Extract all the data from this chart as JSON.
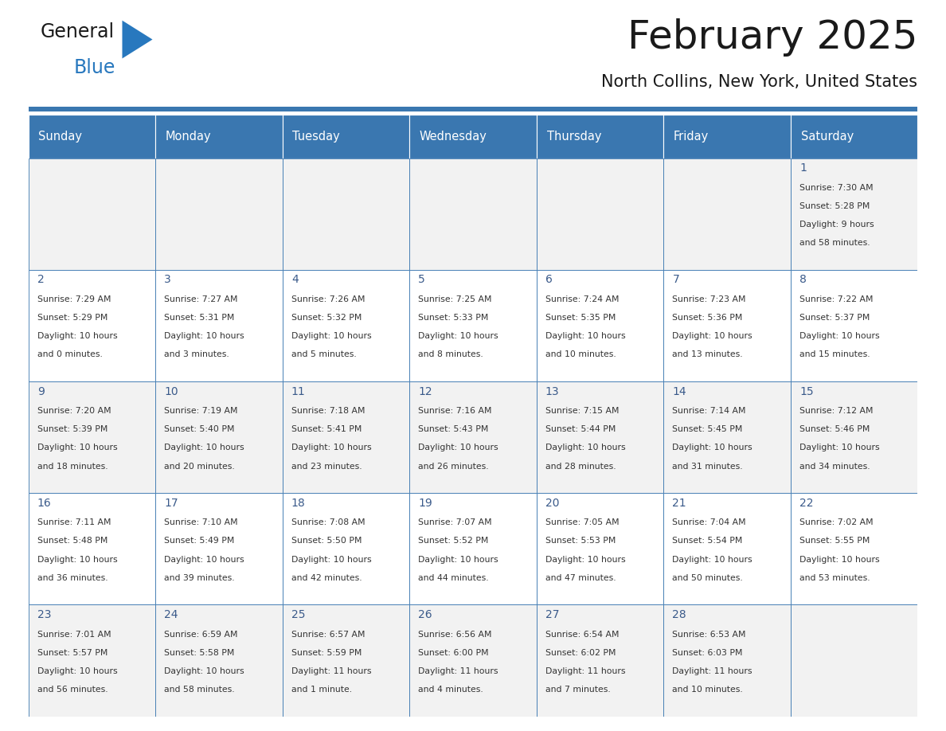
{
  "title": "February 2025",
  "subtitle": "North Collins, New York, United States",
  "days_of_week": [
    "Sunday",
    "Monday",
    "Tuesday",
    "Wednesday",
    "Thursday",
    "Friday",
    "Saturday"
  ],
  "header_bg": "#3a77b0",
  "header_text": "#ffffff",
  "cell_bg_odd": "#f2f2f2",
  "cell_bg_even": "#ffffff",
  "cell_border": "#3a77b0",
  "title_color": "#1a1a1a",
  "subtitle_color": "#1a1a1a",
  "day_num_color": "#3a5a8a",
  "cell_text_color": "#333333",
  "logo_general_color": "#1a1a1a",
  "logo_blue_color": "#2878be",
  "weeks": [
    [
      null,
      null,
      null,
      null,
      null,
      null,
      {
        "day": 1,
        "sunrise": "7:30 AM",
        "sunset": "5:28 PM",
        "daylight_line1": "Daylight: 9 hours",
        "daylight_line2": "and 58 minutes."
      }
    ],
    [
      {
        "day": 2,
        "sunrise": "7:29 AM",
        "sunset": "5:29 PM",
        "daylight_line1": "Daylight: 10 hours",
        "daylight_line2": "and 0 minutes."
      },
      {
        "day": 3,
        "sunrise": "7:27 AM",
        "sunset": "5:31 PM",
        "daylight_line1": "Daylight: 10 hours",
        "daylight_line2": "and 3 minutes."
      },
      {
        "day": 4,
        "sunrise": "7:26 AM",
        "sunset": "5:32 PM",
        "daylight_line1": "Daylight: 10 hours",
        "daylight_line2": "and 5 minutes."
      },
      {
        "day": 5,
        "sunrise": "7:25 AM",
        "sunset": "5:33 PM",
        "daylight_line1": "Daylight: 10 hours",
        "daylight_line2": "and 8 minutes."
      },
      {
        "day": 6,
        "sunrise": "7:24 AM",
        "sunset": "5:35 PM",
        "daylight_line1": "Daylight: 10 hours",
        "daylight_line2": "and 10 minutes."
      },
      {
        "day": 7,
        "sunrise": "7:23 AM",
        "sunset": "5:36 PM",
        "daylight_line1": "Daylight: 10 hours",
        "daylight_line2": "and 13 minutes."
      },
      {
        "day": 8,
        "sunrise": "7:22 AM",
        "sunset": "5:37 PM",
        "daylight_line1": "Daylight: 10 hours",
        "daylight_line2": "and 15 minutes."
      }
    ],
    [
      {
        "day": 9,
        "sunrise": "7:20 AM",
        "sunset": "5:39 PM",
        "daylight_line1": "Daylight: 10 hours",
        "daylight_line2": "and 18 minutes."
      },
      {
        "day": 10,
        "sunrise": "7:19 AM",
        "sunset": "5:40 PM",
        "daylight_line1": "Daylight: 10 hours",
        "daylight_line2": "and 20 minutes."
      },
      {
        "day": 11,
        "sunrise": "7:18 AM",
        "sunset": "5:41 PM",
        "daylight_line1": "Daylight: 10 hours",
        "daylight_line2": "and 23 minutes."
      },
      {
        "day": 12,
        "sunrise": "7:16 AM",
        "sunset": "5:43 PM",
        "daylight_line1": "Daylight: 10 hours",
        "daylight_line2": "and 26 minutes."
      },
      {
        "day": 13,
        "sunrise": "7:15 AM",
        "sunset": "5:44 PM",
        "daylight_line1": "Daylight: 10 hours",
        "daylight_line2": "and 28 minutes."
      },
      {
        "day": 14,
        "sunrise": "7:14 AM",
        "sunset": "5:45 PM",
        "daylight_line1": "Daylight: 10 hours",
        "daylight_line2": "and 31 minutes."
      },
      {
        "day": 15,
        "sunrise": "7:12 AM",
        "sunset": "5:46 PM",
        "daylight_line1": "Daylight: 10 hours",
        "daylight_line2": "and 34 minutes."
      }
    ],
    [
      {
        "day": 16,
        "sunrise": "7:11 AM",
        "sunset": "5:48 PM",
        "daylight_line1": "Daylight: 10 hours",
        "daylight_line2": "and 36 minutes."
      },
      {
        "day": 17,
        "sunrise": "7:10 AM",
        "sunset": "5:49 PM",
        "daylight_line1": "Daylight: 10 hours",
        "daylight_line2": "and 39 minutes."
      },
      {
        "day": 18,
        "sunrise": "7:08 AM",
        "sunset": "5:50 PM",
        "daylight_line1": "Daylight: 10 hours",
        "daylight_line2": "and 42 minutes."
      },
      {
        "day": 19,
        "sunrise": "7:07 AM",
        "sunset": "5:52 PM",
        "daylight_line1": "Daylight: 10 hours",
        "daylight_line2": "and 44 minutes."
      },
      {
        "day": 20,
        "sunrise": "7:05 AM",
        "sunset": "5:53 PM",
        "daylight_line1": "Daylight: 10 hours",
        "daylight_line2": "and 47 minutes."
      },
      {
        "day": 21,
        "sunrise": "7:04 AM",
        "sunset": "5:54 PM",
        "daylight_line1": "Daylight: 10 hours",
        "daylight_line2": "and 50 minutes."
      },
      {
        "day": 22,
        "sunrise": "7:02 AM",
        "sunset": "5:55 PM",
        "daylight_line1": "Daylight: 10 hours",
        "daylight_line2": "and 53 minutes."
      }
    ],
    [
      {
        "day": 23,
        "sunrise": "7:01 AM",
        "sunset": "5:57 PM",
        "daylight_line1": "Daylight: 10 hours",
        "daylight_line2": "and 56 minutes."
      },
      {
        "day": 24,
        "sunrise": "6:59 AM",
        "sunset": "5:58 PM",
        "daylight_line1": "Daylight: 10 hours",
        "daylight_line2": "and 58 minutes."
      },
      {
        "day": 25,
        "sunrise": "6:57 AM",
        "sunset": "5:59 PM",
        "daylight_line1": "Daylight: 11 hours",
        "daylight_line2": "and 1 minute."
      },
      {
        "day": 26,
        "sunrise": "6:56 AM",
        "sunset": "6:00 PM",
        "daylight_line1": "Daylight: 11 hours",
        "daylight_line2": "and 4 minutes."
      },
      {
        "day": 27,
        "sunrise": "6:54 AM",
        "sunset": "6:02 PM",
        "daylight_line1": "Daylight: 11 hours",
        "daylight_line2": "and 7 minutes."
      },
      {
        "day": 28,
        "sunrise": "6:53 AM",
        "sunset": "6:03 PM",
        "daylight_line1": "Daylight: 11 hours",
        "daylight_line2": "and 10 minutes."
      },
      null
    ]
  ],
  "fig_width": 11.88,
  "fig_height": 9.18,
  "dpi": 100
}
